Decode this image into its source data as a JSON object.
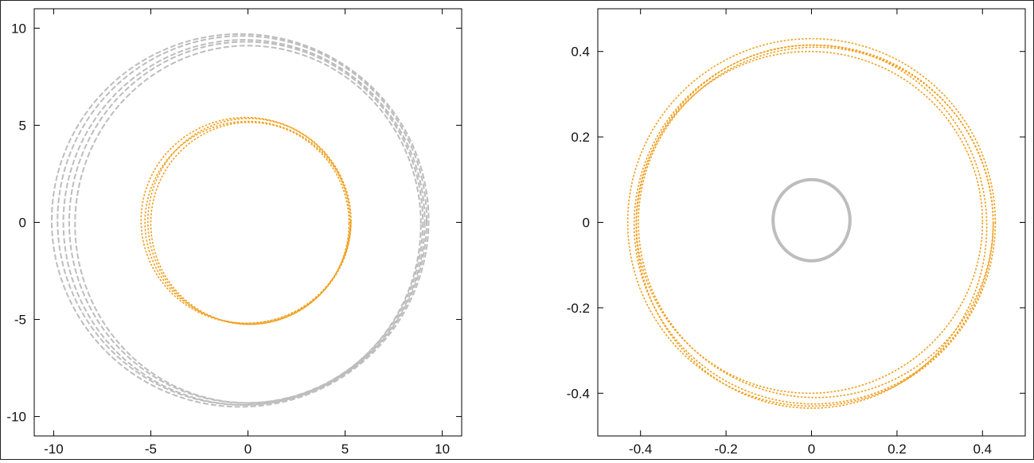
{
  "chart_data": [
    {
      "type": "line",
      "title": "",
      "xlabel": "",
      "ylabel": "",
      "xlim": [
        -11,
        11
      ],
      "ylim": [
        -11,
        11
      ],
      "xticks": [
        -10,
        -5,
        0,
        5,
        10
      ],
      "yticks": [
        -10,
        -5,
        0,
        5,
        10
      ],
      "xtick_labels": [
        "-10",
        "-5",
        "0",
        "5",
        "10"
      ],
      "ytick_labels": [
        "-10",
        "-5",
        "0",
        "5",
        "10"
      ],
      "grid": false,
      "series": [
        {
          "style": "dashed",
          "color": "#bdbdbd",
          "rings": [
            {
              "cx": -0.4,
              "cy": 0.1,
              "rx": 9.7,
              "ry": 9.6
            },
            {
              "cx": -0.3,
              "cy": 0.1,
              "rx": 9.5,
              "ry": 9.5
            },
            {
              "cx": -0.2,
              "cy": 0.0,
              "rx": 9.3,
              "ry": 9.4
            },
            {
              "cx": -0.1,
              "cy": 0.0,
              "rx": 9.1,
              "ry": 9.3
            },
            {
              "cx": 0.0,
              "cy": -0.1,
              "rx": 8.9,
              "ry": 9.2
            }
          ]
        },
        {
          "style": "dotted",
          "color": "#f0a020",
          "rings": [
            {
              "cx": -0.1,
              "cy": 0.1,
              "rx": 5.4,
              "ry": 5.3
            },
            {
              "cx": 0.0,
              "cy": 0.0,
              "rx": 5.3,
              "ry": 5.2
            },
            {
              "cx": 0.05,
              "cy": 0.05,
              "rx": 5.2,
              "ry": 5.3
            },
            {
              "cx": 0.1,
              "cy": -0.05,
              "rx": 5.1,
              "ry": 5.2
            }
          ]
        }
      ]
    },
    {
      "type": "line",
      "title": "",
      "xlabel": "",
      "ylabel": "",
      "xlim": [
        -0.5,
        0.5
      ],
      "ylim": [
        -0.5,
        0.5
      ],
      "xticks": [
        -0.4,
        -0.2,
        0,
        0.2,
        0.4
      ],
      "yticks": [
        -0.4,
        -0.2,
        0,
        0.2,
        0.4
      ],
      "xtick_labels": [
        "-0.4",
        "-0.2",
        "0",
        "0.2",
        "0.4"
      ],
      "ytick_labels": [
        "-0.4",
        "-0.2",
        "0",
        "0.2",
        "0.4"
      ],
      "grid": false,
      "series": [
        {
          "style": "dotted",
          "color": "#f0a020",
          "rings": [
            {
              "cx": 0.0,
              "cy": 0.0,
              "rx": 0.43,
              "ry": 0.43
            },
            {
              "cx": 0.005,
              "cy": -0.005,
              "rx": 0.42,
              "ry": 0.42
            },
            {
              "cx": 0.0,
              "cy": -0.01,
              "rx": 0.41,
              "ry": 0.425
            },
            {
              "cx": 0.01,
              "cy": 0.0,
              "rx": 0.415,
              "ry": 0.41
            },
            {
              "cx": -0.005,
              "cy": 0.0,
              "rx": 0.405,
              "ry": 0.4
            }
          ]
        },
        {
          "style": "solid",
          "color": "#bdbdbd",
          "rings": [
            {
              "cx": 0.0,
              "cy": 0.005,
              "rx": 0.09,
              "ry": 0.095
            }
          ]
        }
      ]
    }
  ]
}
